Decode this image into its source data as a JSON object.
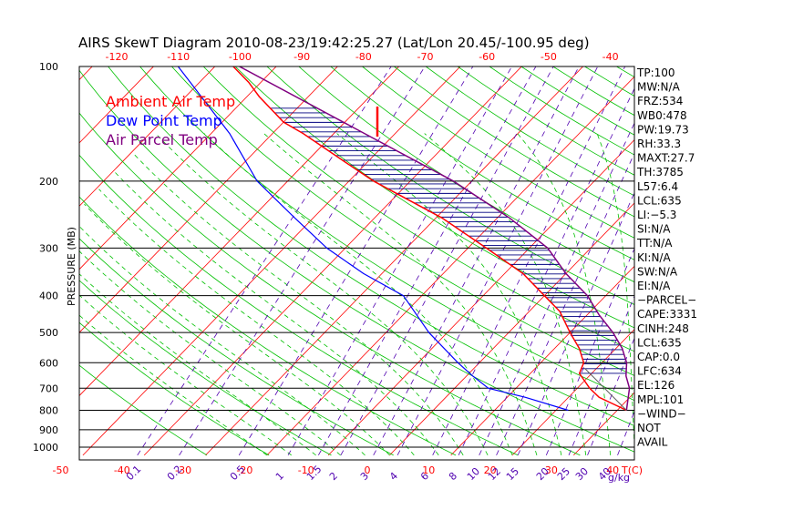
{
  "chart_data": {
    "type": "line",
    "title": "AIRS SkewT Diagram 2010-08-23/19:42:25.27 (Lat/Lon 20.45/-100.95 deg)",
    "ylabel": "PRESSURE (MB)",
    "xlabel": "T(C)",
    "mixing_unit": "g/kg",
    "pressure_levels": [
      1000,
      900,
      800,
      700,
      600,
      500,
      400,
      300,
      200,
      100
    ],
    "pressure_tick_labels": [
      "1000",
      "900",
      "800",
      "700",
      "600",
      "500",
      "400",
      "300",
      "200",
      "100"
    ],
    "temp_ticks_bottom": [
      "-50",
      "-40",
      "-30",
      "-20",
      "-10",
      "0",
      "10",
      "20",
      "30",
      "40"
    ],
    "temp_ticks_top": [
      "-120",
      "-110",
      "-100",
      "-90",
      "-80",
      "-70",
      "-60",
      "-50",
      "-40"
    ],
    "mixing_ratio_ticks": [
      "0.1",
      "0.2",
      "0.5",
      "1",
      "1.5",
      "2",
      "3",
      "4",
      "6",
      "8",
      "10",
      "12",
      "15",
      "20",
      "25",
      "30",
      "40"
    ],
    "legend": [
      {
        "name": "Ambient Air Temp",
        "color": "#ff0000"
      },
      {
        "name": "Dew Point Temp",
        "color": "#0000ff"
      },
      {
        "name": "Air Parcel Temp",
        "color": "#800080"
      }
    ],
    "series": [
      {
        "name": "Ambient Air Temp",
        "color": "#ff0000",
        "points": [
          [
            800,
            31.5
          ],
          [
            740,
            25
          ],
          [
            700,
            22
          ],
          [
            640,
            18
          ],
          [
            600,
            17
          ],
          [
            550,
            14
          ],
          [
            500,
            10
          ],
          [
            440,
            5
          ],
          [
            400,
            0
          ],
          [
            350,
            -7
          ],
          [
            300,
            -17
          ],
          [
            250,
            -29
          ],
          [
            200,
            -46
          ],
          [
            180,
            -53
          ],
          [
            150,
            -65
          ],
          [
            140,
            -70
          ],
          [
            120,
            -78
          ],
          [
            110,
            -82
          ],
          [
            100,
            -87
          ]
        ]
      },
      {
        "name": "Dew Point Temp",
        "color": "#0000ff",
        "points": [
          [
            800,
            22
          ],
          [
            740,
            13
          ],
          [
            700,
            5.5
          ],
          [
            650,
            1
          ],
          [
            600,
            -3.5
          ],
          [
            500,
            -13
          ],
          [
            400,
            -23
          ],
          [
            350,
            -33
          ],
          [
            300,
            -43
          ],
          [
            250,
            -53
          ],
          [
            200,
            -65
          ],
          [
            150,
            -77
          ],
          [
            100,
            -96
          ]
        ]
      },
      {
        "name": "Air Parcel Temp",
        "color": "#800080",
        "points": [
          [
            800,
            31.5
          ],
          [
            700,
            28.5
          ],
          [
            650,
            26
          ],
          [
            600,
            24
          ],
          [
            550,
            21
          ],
          [
            500,
            17
          ],
          [
            450,
            12
          ],
          [
            400,
            7
          ],
          [
            350,
            0
          ],
          [
            300,
            -7
          ],
          [
            250,
            -18
          ],
          [
            200,
            -33
          ],
          [
            150,
            -55
          ],
          [
            100,
            -86
          ]
        ]
      }
    ],
    "indices": [
      "TP:100",
      "MW:N/A",
      "FRZ:534",
      "WB0:478",
      "PW:19.73",
      "RH:33.3",
      "MAXT:27.7",
      "TH:3785",
      "L57:6.4",
      "LCL:635",
      "LI:−5.3",
      "SI:N/A",
      "TT:N/A",
      "KI:N/A",
      "SW:N/A",
      "EI:N/A",
      "−PARCEL−",
      "CAPE:3331",
      "CINH:248",
      "LCL:635",
      "CAP:0.0",
      "LFC:634",
      "EL:126",
      "MPL:101",
      "−WIND−",
      "NOT",
      "AVAIL"
    ],
    "colors": {
      "isotherm": "#ff0000",
      "dry_adiabat": "#00c000",
      "moist_adiabat": "#00c000",
      "mixing_ratio": "#5000b0",
      "isobar": "#000000",
      "cape_hatch": "#000080"
    }
  }
}
